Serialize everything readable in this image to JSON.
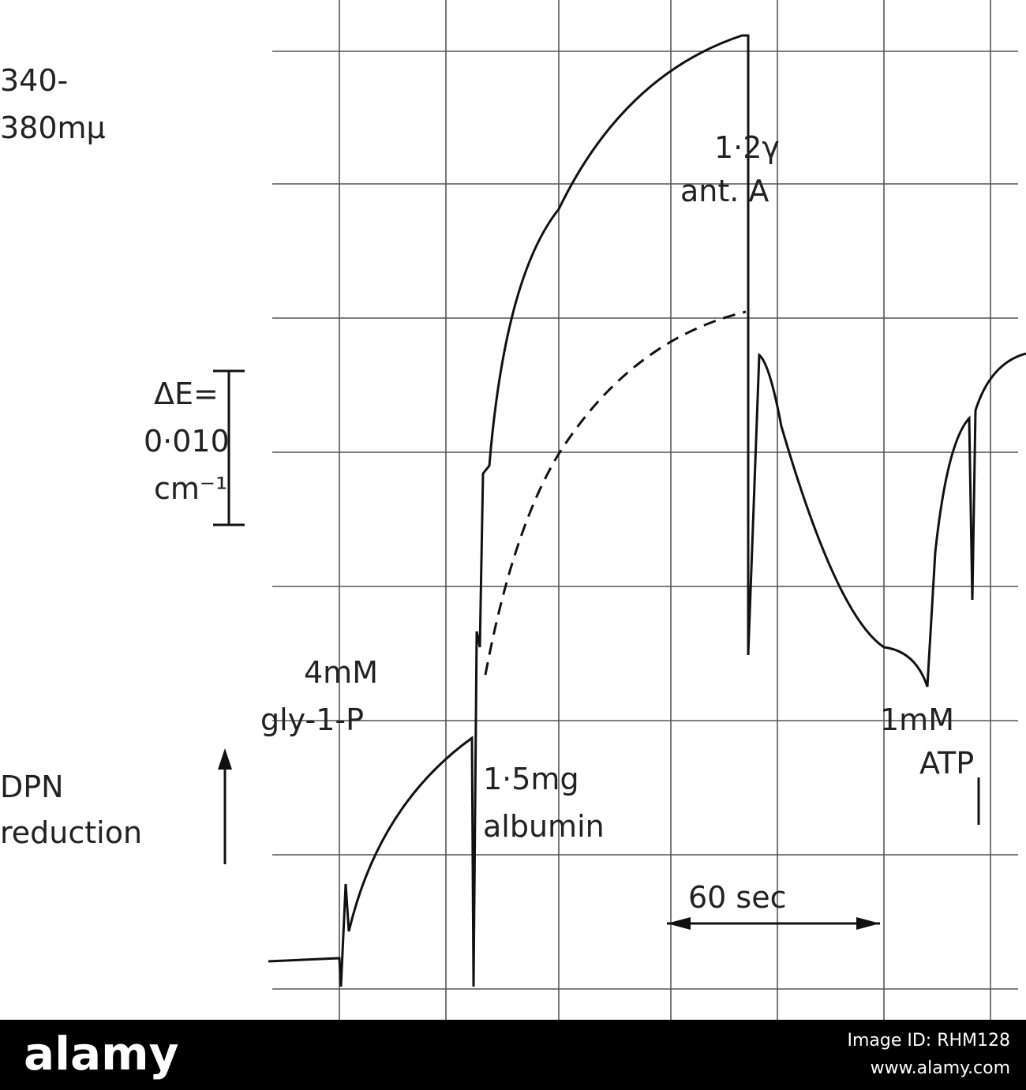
{
  "figure": {
    "wavelength": [
      "340-",
      "380mμ"
    ],
    "annotations": {
      "antimycin": [
        "1·2γ",
        "ant. A"
      ],
      "scale": [
        "ΔE=",
        "0·010",
        "cm⁻¹"
      ],
      "glycerophosphate": [
        "4mM",
        "gly-1-P"
      ],
      "albumin": [
        "1·5mg",
        "albumin"
      ],
      "atp": [
        "1mM",
        "ATP"
      ],
      "direction": [
        "DPN",
        "reduction"
      ],
      "time": "60 sec"
    }
  },
  "footer": {
    "brand": "alamy",
    "image_id": "Image ID: RHM128",
    "url": "www.alamy.com"
  }
}
